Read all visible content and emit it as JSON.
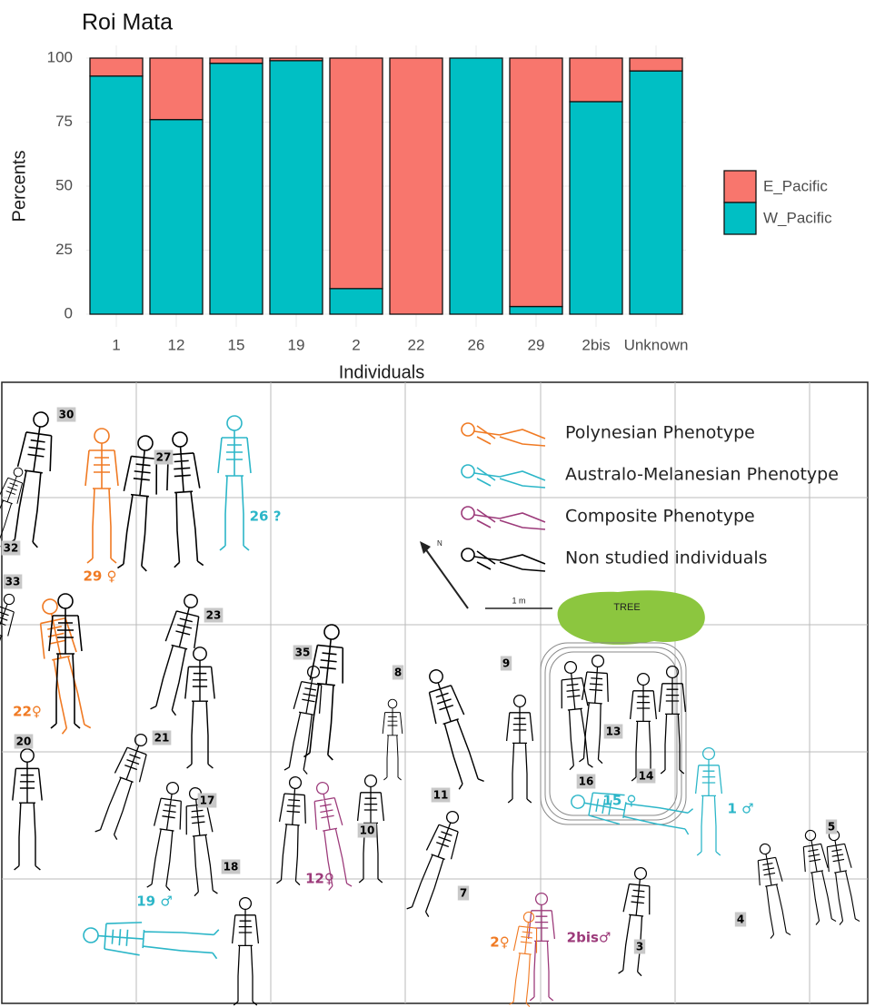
{
  "chart_data": {
    "type": "bar",
    "stacked": true,
    "title": "Roi Mata",
    "x_label": "Individuals",
    "y_label": "Percents",
    "categories": [
      "1",
      "12",
      "15",
      "19",
      "2",
      "22",
      "26",
      "29",
      "2bis",
      "Unknown"
    ],
    "series": [
      {
        "name": "E_Pacific",
        "color": "#F8766D",
        "values": [
          7,
          24,
          2,
          1,
          90,
          100,
          0,
          97,
          17,
          5
        ]
      },
      {
        "name": "W_Pacific",
        "color": "#00BFC4",
        "values": [
          93,
          76,
          98,
          99,
          10,
          0,
          100,
          3,
          83,
          95
        ]
      }
    ],
    "ylim": [
      0,
      100
    ],
    "yticks": [
      0,
      25,
      50,
      75,
      100
    ],
    "grid": true,
    "legend": "right"
  },
  "map": {
    "legend": [
      {
        "text": "Polynesian Phenotype",
        "color": "#f07a23"
      },
      {
        "text": "Australo-Melanesian Phenotype",
        "color": "#2cb6c8"
      },
      {
        "text": "Composite Phenotype",
        "color": "#9c3a7a"
      },
      {
        "text": "Non studied individuals",
        "color": "#000000"
      }
    ],
    "tree": "TREE",
    "scale": "1 m",
    "north": "N",
    "labels": [
      {
        "text": "30",
        "color": "#000000"
      },
      {
        "text": "27",
        "color": "#000000"
      },
      {
        "text": "26 ?",
        "color": "#2cb6c8"
      },
      {
        "text": "29 ♀",
        "color": "#f07a23"
      },
      {
        "text": "32",
        "color": "#000000"
      },
      {
        "text": "33",
        "color": "#000000"
      },
      {
        "text": "23",
        "color": "#000000"
      },
      {
        "text": "35",
        "color": "#000000"
      },
      {
        "text": "8",
        "color": "#000000"
      },
      {
        "text": "9",
        "color": "#000000"
      },
      {
        "text": "13",
        "color": "#000000"
      },
      {
        "text": "16",
        "color": "#000000"
      },
      {
        "text": "14",
        "color": "#000000"
      },
      {
        "text": "15 ♀",
        "color": "#2cb6c8"
      },
      {
        "text": "1 ♂",
        "color": "#2cb6c8"
      },
      {
        "text": "5",
        "color": "#000000"
      },
      {
        "text": "22♀",
        "color": "#f07a23"
      },
      {
        "text": "20",
        "color": "#000000"
      },
      {
        "text": "21",
        "color": "#000000"
      },
      {
        "text": "17",
        "color": "#000000"
      },
      {
        "text": "11",
        "color": "#000000"
      },
      {
        "text": "12♀",
        "color": "#9c3a7a"
      },
      {
        "text": "10",
        "color": "#000000"
      },
      {
        "text": "7",
        "color": "#000000"
      },
      {
        "text": "18",
        "color": "#000000"
      },
      {
        "text": "19 ♂",
        "color": "#2cb6c8"
      },
      {
        "text": "2♀",
        "color": "#f07a23"
      },
      {
        "text": "2bis♂",
        "color": "#9c3a7a"
      },
      {
        "text": "3",
        "color": "#000000"
      },
      {
        "text": "4",
        "color": "#000000"
      }
    ]
  }
}
